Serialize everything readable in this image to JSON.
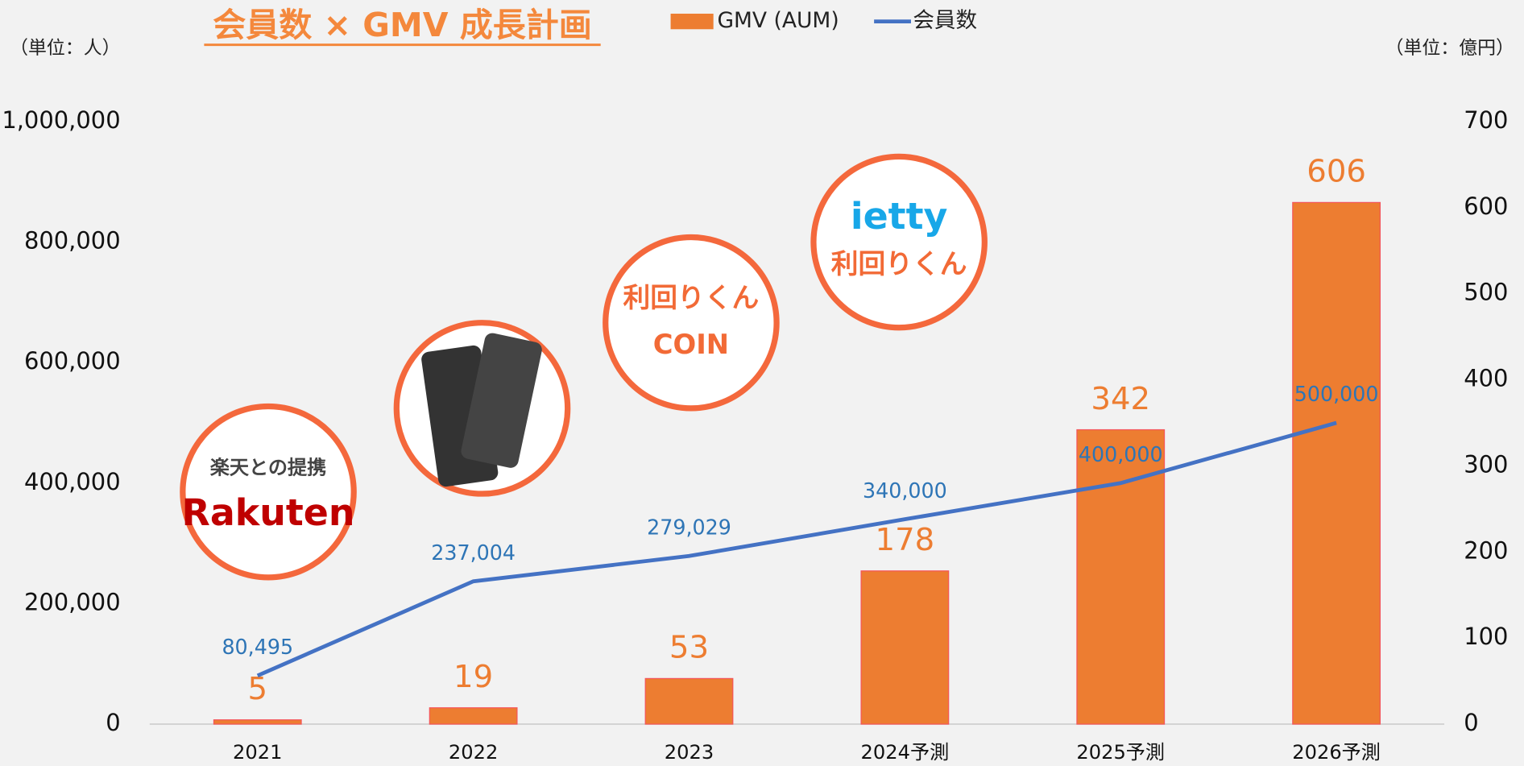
{
  "chart_data": {
    "type": "bar-line",
    "title": "会員数 × GMV 成長計画",
    "y_unit": "（単位：人）",
    "y2_unit": "（単位：億円）",
    "categories": [
      "2021",
      "2022",
      "2023",
      "2024予測",
      "2025予測",
      "2026予測"
    ],
    "series": [
      {
        "name": "GMV (AUM)",
        "type": "bar",
        "axis": "y2",
        "color": "#ed7d31",
        "values": [
          5,
          19,
          53,
          178,
          342,
          606
        ]
      },
      {
        "name": "会員数",
        "type": "line",
        "axis": "y",
        "color": "#4472c4",
        "values": [
          80495,
          237004,
          279029,
          340000,
          400000,
          500000
        ],
        "value_labels": [
          "80,495",
          "237,004",
          "279,029",
          "340,000",
          "400,000",
          "500,000"
        ]
      }
    ],
    "ylim": [
      0,
      1000000
    ],
    "yticks": [
      0,
      {
        "value": 200000,
        "label": "200,000"
      },
      {
        "value": 400000,
        "label": "400,000"
      },
      {
        "value": 600000,
        "label": "600,000"
      },
      {
        "value": 800000,
        "label": "800,000"
      },
      {
        "value": 1000000,
        "label": "1,000,000"
      }
    ],
    "y2lim": [
      0,
      700
    ],
    "y2ticks": [
      0,
      100,
      200,
      300,
      400,
      500,
      600,
      700
    ],
    "logos": [
      [
        "楽天との提携",
        "Rakuten"
      ],
      [
        "利回りくん",
        "COIN"
      ],
      [
        "ietty",
        "利回りくん"
      ]
    ]
  }
}
